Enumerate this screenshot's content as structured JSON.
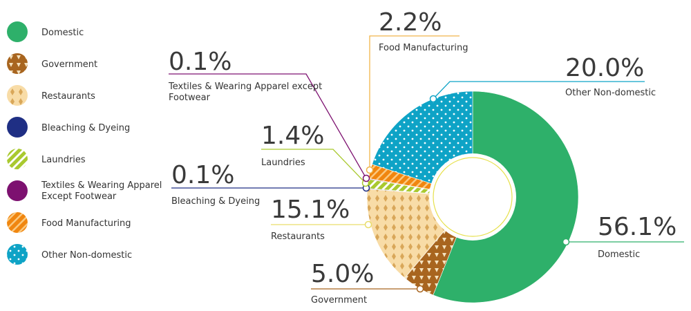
{
  "chart_data": {
    "type": "pie",
    "variant": "donut",
    "legend_position": "left",
    "categories": [
      "Domestic",
      "Government",
      "Restaurants",
      "Bleaching & Dyeing",
      "Laundries",
      "Textiles & Wearing Apparel except Footwear",
      "Food Manufacturing",
      "Other Non-domestic"
    ],
    "values": [
      56.1,
      5.0,
      15.1,
      0.1,
      1.4,
      0.1,
      2.2,
      20.0
    ],
    "units": "%"
  },
  "legend": [
    {
      "lines": [
        "Domestic"
      ],
      "color": "#2eb06a",
      "pattern": "solid"
    },
    {
      "lines": [
        "Government"
      ],
      "color": "#a8651f",
      "pattern": "triangles"
    },
    {
      "lines": [
        "Restaurants"
      ],
      "color": "#f8dca7",
      "pattern": "diamonds"
    },
    {
      "lines": [
        "Bleaching & Dyeing"
      ],
      "color": "#1f2f84",
      "pattern": "solid"
    },
    {
      "lines": [
        "Laundries"
      ],
      "color": "#a9c92f",
      "pattern": "stripes"
    },
    {
      "lines": [
        "Textiles & Wearing Apparel",
        "Except Footwear"
      ],
      "color": "#7d1170",
      "pattern": "solid"
    },
    {
      "lines": [
        "Food Manufacturing"
      ],
      "color": "#f0860f",
      "pattern": "stripes"
    },
    {
      "lines": [
        "Other Non-domestic"
      ],
      "color": "#0ea3c6",
      "pattern": "dots"
    }
  ],
  "callouts": [
    {
      "key": "domestic",
      "pct": "56.1%",
      "lines": [
        "Domestic"
      ],
      "line_color": "#2eb06a"
    },
    {
      "key": "government",
      "pct": "5.0%",
      "lines": [
        "Government"
      ],
      "line_color": "#a8651f"
    },
    {
      "key": "restaurants",
      "pct": "15.1%",
      "lines": [
        "Restaurants"
      ],
      "line_color": "#e9dd6a"
    },
    {
      "key": "bleaching",
      "pct": "0.1%",
      "lines": [
        "Bleaching & Dyeing"
      ],
      "line_color": "#1f2f84"
    },
    {
      "key": "laundries",
      "pct": "1.4%",
      "lines": [
        "Laundries"
      ],
      "line_color": "#a9c92f"
    },
    {
      "key": "textiles",
      "pct": "0.1%",
      "lines": [
        "Textiles & Wearing Apparel except",
        "Footwear"
      ],
      "line_color": "#7d1170"
    },
    {
      "key": "food",
      "pct": "2.2%",
      "lines": [
        "Food Manufacturing"
      ],
      "line_color": "#f0b54a"
    },
    {
      "key": "other",
      "pct": "20.0%",
      "lines": [
        "Other Non-domestic"
      ],
      "line_color": "#0ea3c6"
    }
  ]
}
